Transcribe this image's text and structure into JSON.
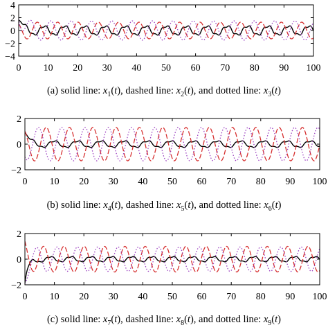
{
  "chart_data": [
    {
      "type": "line",
      "xlim": [
        0,
        100
      ],
      "ylim": [
        -4,
        4
      ],
      "xticks": [
        "0",
        "10",
        "20",
        "30",
        "40",
        "50",
        "60",
        "70",
        "80",
        "90",
        "100"
      ],
      "yticks": [
        "4",
        "2",
        "0",
        "−2",
        "−4"
      ],
      "caption_prefix": "(a)",
      "caption": [
        "solid line: ",
        "x",
        "1",
        "(t)",
        ", dashed line: ",
        "x",
        "2",
        "(t)",
        ", and dotted line: ",
        "x",
        "3",
        "(t)"
      ],
      "series": [
        {
          "style": "solid",
          "color": "#000000",
          "amplitude": 0.7,
          "period": 6.9,
          "initial": 1.5
        },
        {
          "style": "dashed",
          "color": "#d62f2f",
          "amplitude": 1.3,
          "period": 6.9,
          "initial": 1.0
        },
        {
          "style": "dotted",
          "color": "#9b3fc0",
          "amplitude": 1.5,
          "period": 6.9,
          "initial": 1.8
        }
      ]
    },
    {
      "type": "line",
      "xlim": [
        0,
        100
      ],
      "ylim": [
        -2,
        2
      ],
      "xticks": [
        "0",
        "10",
        "20",
        "30",
        "40",
        "50",
        "60",
        "70",
        "80",
        "90",
        "100"
      ],
      "yticks": [
        "2",
        "0",
        "−2"
      ],
      "caption_prefix": "(b)",
      "caption": [
        "solid line: ",
        "x",
        "4",
        "(t)",
        ", dashed line: ",
        "x",
        "5",
        "(t)",
        ", and dotted line: ",
        "x",
        "6",
        "(t)"
      ],
      "series": [
        {
          "style": "solid",
          "color": "#000000",
          "amplitude": 0.25,
          "period": 7.9,
          "initial": 0.9
        },
        {
          "style": "dashed",
          "color": "#d62f2f",
          "amplitude": 1.3,
          "period": 7.9,
          "initial": 1.0
        },
        {
          "style": "dotted",
          "color": "#9b3fc0",
          "amplitude": 1.3,
          "period": 7.9,
          "initial": -1.0
        }
      ]
    },
    {
      "type": "line",
      "xlim": [
        0,
        100
      ],
      "ylim": [
        -2,
        2
      ],
      "xticks": [
        "0",
        "10",
        "20",
        "30",
        "40",
        "50",
        "60",
        "70",
        "80",
        "90",
        "100"
      ],
      "yticks": [
        "2",
        "0",
        "−2"
      ],
      "caption_prefix": "(c)",
      "caption": [
        "solid line: ",
        "x",
        "7",
        "(t)",
        ", dashed line: ",
        "x",
        "8",
        "(t)",
        ", and dotted line: ",
        "x",
        "9",
        "(t)"
      ],
      "series": [
        {
          "style": "solid",
          "color": "#000000",
          "amplitude": 0.2,
          "period": 6.9,
          "initial": -1.9
        },
        {
          "style": "dashed",
          "color": "#d62f2f",
          "amplitude": 1.0,
          "period": 6.9,
          "initial": 1.4
        },
        {
          "style": "dotted",
          "color": "#9b3fc0",
          "amplitude": 0.95,
          "period": 6.9,
          "initial": -1.9
        }
      ]
    }
  ]
}
